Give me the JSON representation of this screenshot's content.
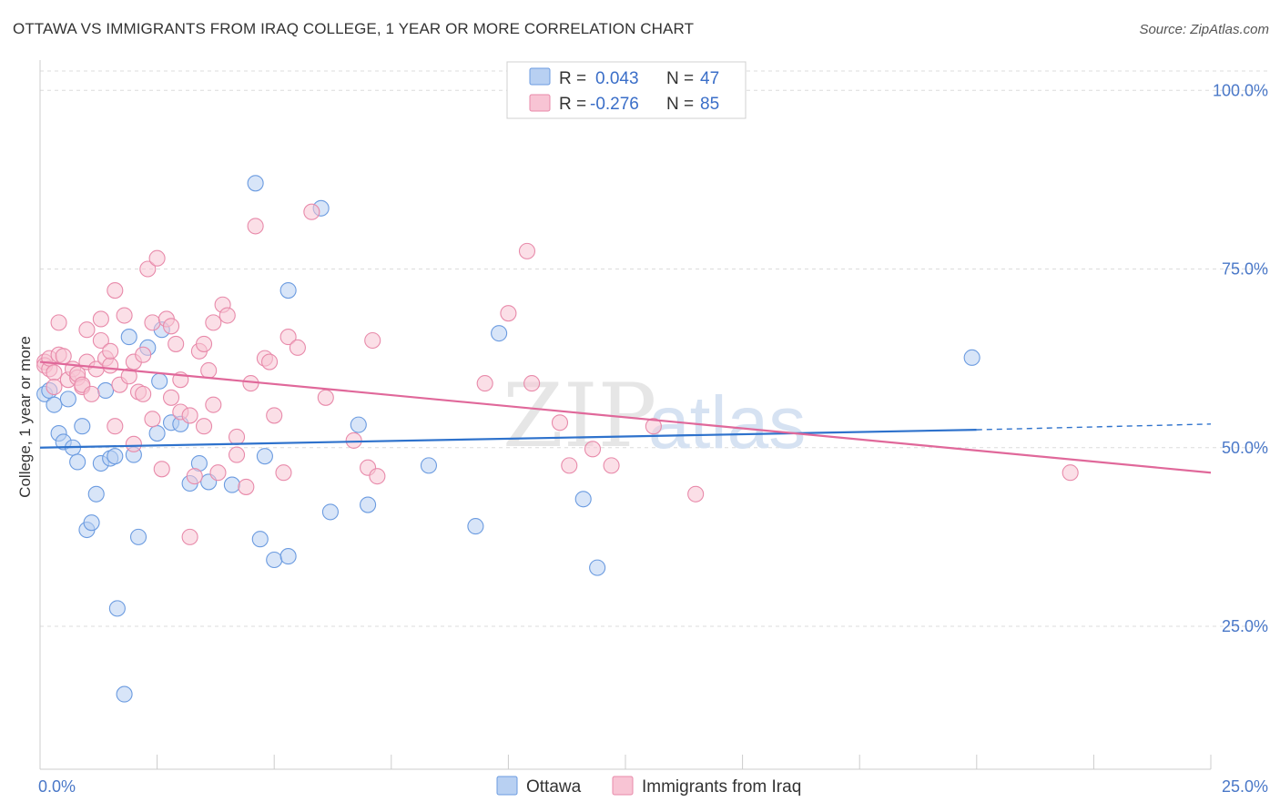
{
  "header": {
    "title": "OTTAWA VS IMMIGRANTS FROM IRAQ COLLEGE, 1 YEAR OR MORE CORRELATION CHART",
    "source": "Source: ZipAtlas.com"
  },
  "watermark": {
    "zip": "ZIP",
    "atlas": "atlas"
  },
  "colors": {
    "ottawa_fill": "#b8d0f2",
    "ottawa_stroke": "#6b9be0",
    "ottawa_line": "#2e72cc",
    "iraq_fill": "#f8c4d4",
    "iraq_stroke": "#e88aaa",
    "iraq_line": "#e0689a",
    "grid": "#dcdcdc",
    "tick_label": "#4a78c8"
  },
  "legend": {
    "rows": [
      {
        "r_label": "R =",
        "r_value": "0.043",
        "n_label": "N =",
        "n_value": "47"
      },
      {
        "r_label": "R =",
        "r_value": "-0.276",
        "n_label": "N =",
        "n_value": "85"
      }
    ]
  },
  "chart_data": {
    "type": "scatter",
    "xlabel": "",
    "ylabel": "College, 1 year or more",
    "xlim": [
      0,
      25
    ],
    "ylim": [
      5,
      105
    ],
    "x_tick_labels": [
      "0.0%",
      "25.0%"
    ],
    "y_ticks": [
      25,
      50,
      75,
      100
    ],
    "y_tick_labels": [
      "25.0%",
      "50.0%",
      "75.0%",
      "100.0%"
    ],
    "grid": true,
    "legend_position": "bottom",
    "series": [
      {
        "name": "Ottawa",
        "trend": {
          "x0": 0,
          "y0": 50.0,
          "x1": 20,
          "y1": 52.5,
          "dashed_to_x": 25,
          "dashed_to_y": 53.3
        },
        "points": [
          [
            0.1,
            57.5
          ],
          [
            0.2,
            58.0
          ],
          [
            0.3,
            56.0
          ],
          [
            0.4,
            52.0
          ],
          [
            0.5,
            50.8
          ],
          [
            0.6,
            56.8
          ],
          [
            0.7,
            50.0
          ],
          [
            0.8,
            48.0
          ],
          [
            0.9,
            53.0
          ],
          [
            1.0,
            38.5
          ],
          [
            1.1,
            39.5
          ],
          [
            1.2,
            43.5
          ],
          [
            1.3,
            47.8
          ],
          [
            1.4,
            58.0
          ],
          [
            1.5,
            48.5
          ],
          [
            1.6,
            48.8
          ],
          [
            1.65,
            27.5
          ],
          [
            1.8,
            15.5
          ],
          [
            1.9,
            65.5
          ],
          [
            2.0,
            49.0
          ],
          [
            2.1,
            37.5
          ],
          [
            2.3,
            64.0
          ],
          [
            2.5,
            52.0
          ],
          [
            2.55,
            59.3
          ],
          [
            2.6,
            66.5
          ],
          [
            2.8,
            53.5
          ],
          [
            3.0,
            53.3
          ],
          [
            3.2,
            45.0
          ],
          [
            3.4,
            47.8
          ],
          [
            3.6,
            45.2
          ],
          [
            4.1,
            44.8
          ],
          [
            4.6,
            87.0
          ],
          [
            4.7,
            37.2
          ],
          [
            4.8,
            48.8
          ],
          [
            5.0,
            34.3
          ],
          [
            5.3,
            34.8
          ],
          [
            5.3,
            72.0
          ],
          [
            6.0,
            83.5
          ],
          [
            6.2,
            41.0
          ],
          [
            6.8,
            53.2
          ],
          [
            7.0,
            42.0
          ],
          [
            8.3,
            47.5
          ],
          [
            9.3,
            39.0
          ],
          [
            9.8,
            66.0
          ],
          [
            11.6,
            42.8
          ],
          [
            11.9,
            33.2
          ],
          [
            19.9,
            62.6
          ]
        ]
      },
      {
        "name": "Immigrants from Iraq",
        "trend": {
          "x0": 0,
          "y0": 62.0,
          "x1": 25,
          "y1": 46.5
        },
        "points": [
          [
            0.1,
            62.0
          ],
          [
            0.1,
            61.5
          ],
          [
            0.2,
            61.0
          ],
          [
            0.2,
            62.5
          ],
          [
            0.3,
            60.5
          ],
          [
            0.3,
            58.5
          ],
          [
            0.4,
            63.0
          ],
          [
            0.4,
            67.5
          ],
          [
            0.5,
            62.8
          ],
          [
            0.6,
            59.5
          ],
          [
            0.7,
            61.0
          ],
          [
            0.8,
            59.8
          ],
          [
            0.8,
            60.3
          ],
          [
            0.9,
            58.5
          ],
          [
            0.9,
            58.8
          ],
          [
            1.0,
            62.0
          ],
          [
            1.0,
            66.5
          ],
          [
            1.1,
            57.5
          ],
          [
            1.2,
            61.0
          ],
          [
            1.3,
            68.0
          ],
          [
            1.3,
            65.0
          ],
          [
            1.4,
            62.5
          ],
          [
            1.5,
            61.5
          ],
          [
            1.5,
            63.5
          ],
          [
            1.6,
            53.0
          ],
          [
            1.6,
            72.0
          ],
          [
            1.7,
            58.8
          ],
          [
            1.8,
            68.5
          ],
          [
            1.9,
            60.0
          ],
          [
            2.0,
            62.0
          ],
          [
            2.0,
            50.5
          ],
          [
            2.1,
            57.8
          ],
          [
            2.2,
            57.5
          ],
          [
            2.2,
            63.0
          ],
          [
            2.3,
            75.0
          ],
          [
            2.4,
            67.5
          ],
          [
            2.4,
            54.0
          ],
          [
            2.5,
            76.5
          ],
          [
            2.6,
            47.0
          ],
          [
            2.7,
            68.0
          ],
          [
            2.8,
            67.0
          ],
          [
            2.8,
            57.0
          ],
          [
            2.9,
            64.5
          ],
          [
            3.0,
            59.5
          ],
          [
            3.0,
            55.0
          ],
          [
            3.2,
            54.5
          ],
          [
            3.2,
            37.5
          ],
          [
            3.3,
            46.0
          ],
          [
            3.4,
            63.5
          ],
          [
            3.5,
            64.5
          ],
          [
            3.5,
            53.0
          ],
          [
            3.6,
            60.8
          ],
          [
            3.7,
            56.0
          ],
          [
            3.7,
            67.5
          ],
          [
            3.8,
            46.5
          ],
          [
            3.9,
            70.0
          ],
          [
            4.0,
            68.5
          ],
          [
            4.2,
            51.5
          ],
          [
            4.2,
            49.0
          ],
          [
            4.4,
            44.5
          ],
          [
            4.5,
            59.0
          ],
          [
            4.6,
            81.0
          ],
          [
            4.8,
            62.5
          ],
          [
            4.9,
            62.0
          ],
          [
            5.0,
            54.5
          ],
          [
            5.2,
            46.5
          ],
          [
            5.3,
            65.5
          ],
          [
            5.5,
            64.0
          ],
          [
            5.8,
            83.0
          ],
          [
            6.1,
            57.0
          ],
          [
            6.7,
            51.0
          ],
          [
            7.0,
            47.2
          ],
          [
            7.1,
            65.0
          ],
          [
            7.2,
            46.0
          ],
          [
            9.5,
            59.0
          ],
          [
            10.0,
            68.8
          ],
          [
            10.4,
            77.5
          ],
          [
            10.5,
            59.0
          ],
          [
            11.1,
            53.5
          ],
          [
            11.3,
            47.5
          ],
          [
            11.8,
            49.8
          ],
          [
            12.2,
            47.5
          ],
          [
            13.1,
            53.0
          ],
          [
            14.0,
            43.5
          ],
          [
            22.0,
            46.5
          ]
        ]
      }
    ]
  }
}
